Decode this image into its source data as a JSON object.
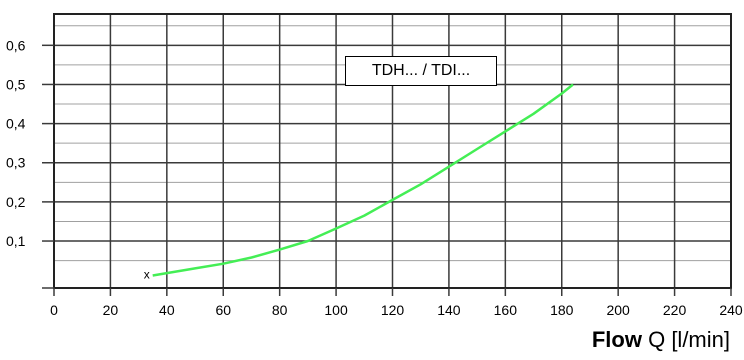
{
  "chart_data": {
    "type": "line",
    "xlabel_bold": "Flow",
    "xlabel_rest": "Q  [l/min]",
    "ylabel": "",
    "xlim": [
      0,
      240
    ],
    "ylim": [
      -0.02,
      0.68
    ],
    "x_ticks": [
      0,
      20,
      40,
      60,
      80,
      100,
      120,
      140,
      160,
      180,
      200,
      220,
      240
    ],
    "x_tick_labels": [
      "0",
      "20",
      "40",
      "60",
      "80",
      "100",
      "120",
      "140",
      "160",
      "180",
      "200",
      "220",
      "240"
    ],
    "y_ticks": [
      0.1,
      0.2,
      0.3,
      0.4,
      0.5,
      0.6
    ],
    "y_tick_labels": [
      "0,1",
      "0,2",
      "0,3",
      "0,4",
      "0,5",
      "0,6"
    ],
    "grid": true,
    "annotation": "TDH... /   TDI...",
    "start_marker": "x",
    "series": [
      {
        "color": "#44ee55",
        "x": [
          35,
          40,
          50,
          60,
          70,
          80,
          90,
          100,
          110,
          120,
          130,
          140,
          150,
          160,
          170,
          180,
          184
        ],
        "y": [
          0.012,
          0.018,
          0.03,
          0.042,
          0.058,
          0.078,
          0.1,
          0.132,
          0.165,
          0.205,
          0.245,
          0.29,
          0.335,
          0.38,
          0.425,
          0.477,
          0.5
        ]
      }
    ]
  }
}
